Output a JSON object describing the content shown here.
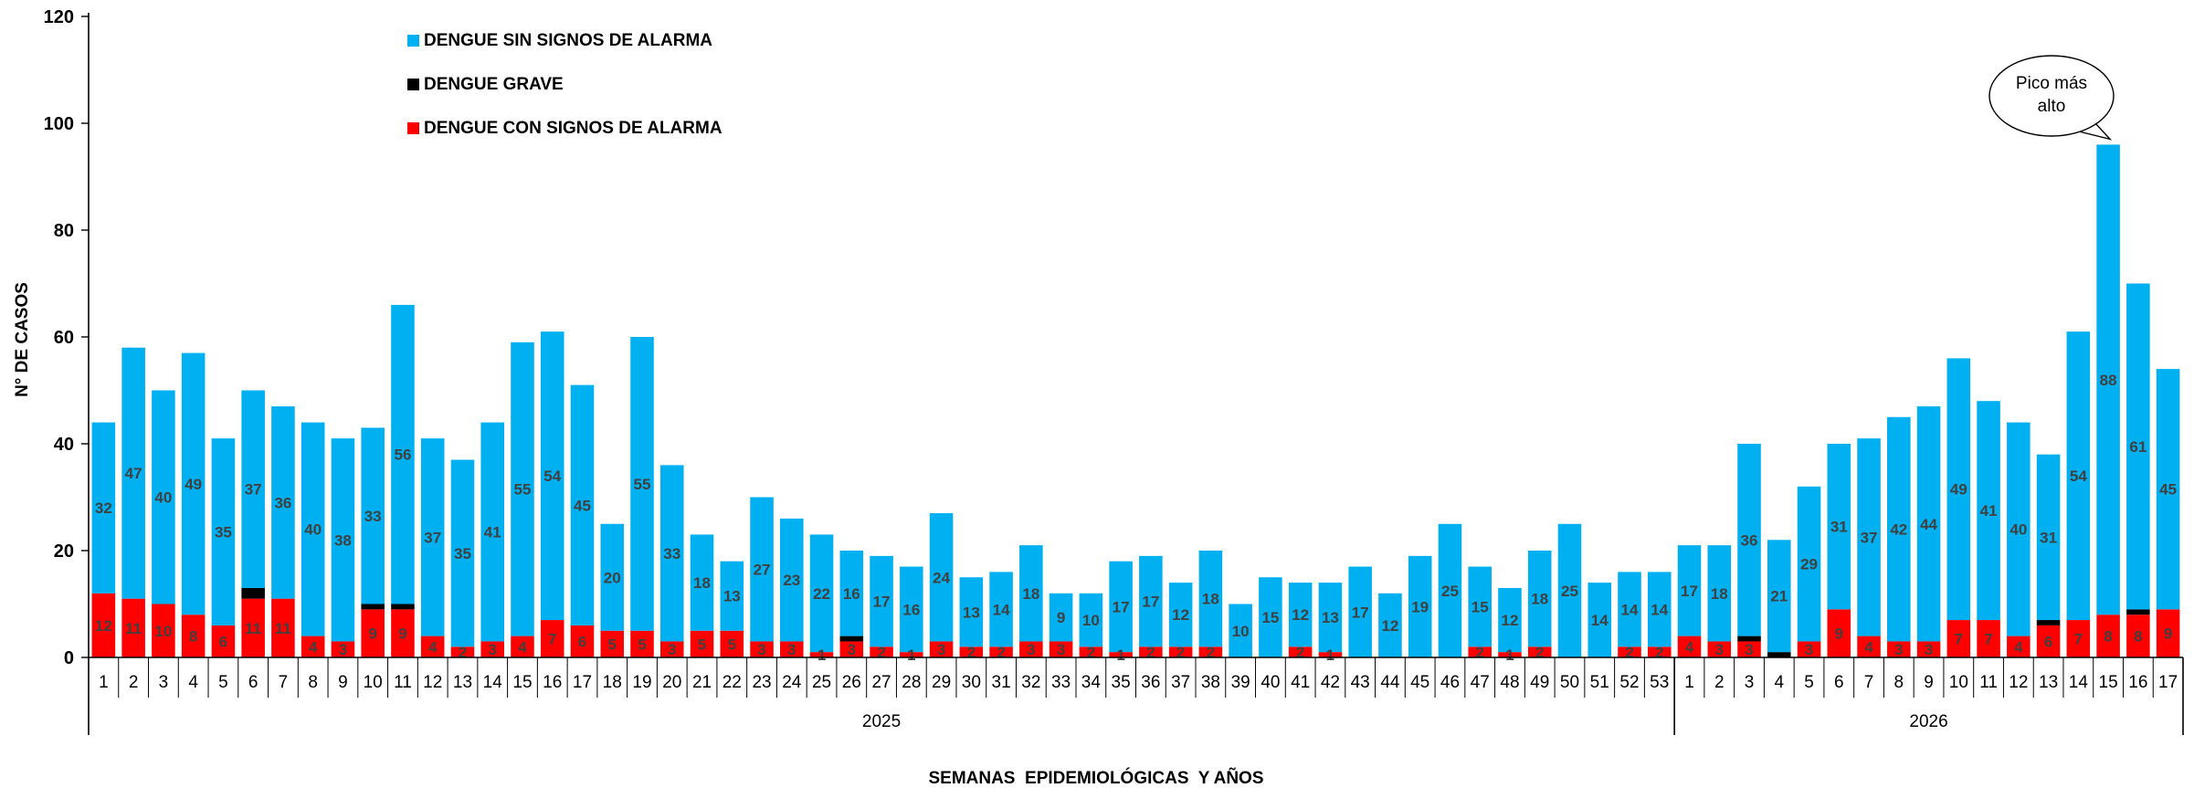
{
  "chart_data": {
    "type": "bar",
    "stacked": true,
    "ylabel": "N° DE CASOS",
    "xlabel": "SEMANAS  EPIDEMIOLÓGICAS  Y AÑOS",
    "ylim": [
      0,
      120
    ],
    "yticks": [
      0,
      20,
      40,
      60,
      80,
      100,
      120
    ],
    "grid": false,
    "legend_position": "top-left",
    "groups": [
      {
        "label": "2025",
        "weeks": [
          "1",
          "2",
          "3",
          "4",
          "5",
          "6",
          "7",
          "8",
          "9",
          "10",
          "11",
          "12",
          "13",
          "14",
          "15",
          "16",
          "17",
          "18",
          "19",
          "20",
          "21",
          "22",
          "23",
          "24",
          "25",
          "26",
          "27",
          "28",
          "29",
          "30",
          "31",
          "32",
          "33",
          "34",
          "35",
          "36",
          "37",
          "38",
          "39",
          "40",
          "41",
          "42",
          "43",
          "44",
          "45",
          "46",
          "47",
          "48",
          "49",
          "50",
          "51",
          "52",
          "53"
        ]
      },
      {
        "label": "2026",
        "weeks": [
          "1",
          "2",
          "3",
          "4",
          "5",
          "6",
          "7",
          "8",
          "9",
          "10",
          "11",
          "12",
          "13",
          "14",
          "15",
          "16",
          "17"
        ]
      }
    ],
    "series": [
      {
        "name": "DENGUE CON SIGNOS DE ALARMA",
        "color": "#ff0000",
        "values": [
          12,
          11,
          10,
          8,
          6,
          11,
          11,
          4,
          3,
          9,
          9,
          4,
          2,
          3,
          4,
          7,
          6,
          5,
          5,
          3,
          5,
          5,
          3,
          3,
          1,
          3,
          2,
          1,
          3,
          2,
          2,
          3,
          3,
          2,
          1,
          2,
          2,
          2,
          0,
          0,
          2,
          1,
          0,
          0,
          0,
          0,
          2,
          1,
          2,
          0,
          0,
          2,
          2,
          4,
          3,
          3,
          0,
          3,
          9,
          4,
          3,
          3,
          7,
          7,
          4,
          6,
          7,
          8,
          8,
          9
        ]
      },
      {
        "name": "DENGUE GRAVE",
        "color": "#000000",
        "values": [
          0,
          0,
          0,
          0,
          0,
          2,
          0,
          0,
          0,
          1,
          1,
          0,
          0,
          0,
          0,
          0,
          0,
          0,
          0,
          0,
          0,
          0,
          0,
          0,
          0,
          1,
          0,
          0,
          0,
          0,
          0,
          0,
          0,
          0,
          0,
          0,
          0,
          0,
          0,
          0,
          0,
          0,
          0,
          0,
          0,
          0,
          0,
          0,
          0,
          0,
          0,
          0,
          0,
          0,
          0,
          1,
          1,
          0,
          0,
          0,
          0,
          0,
          0,
          0,
          0,
          1,
          0,
          0,
          1,
          0
        ]
      },
      {
        "name": "DENGUE SIN SIGNOS DE ALARMA",
        "color": "#00b0f0",
        "values": [
          32,
          47,
          40,
          49,
          35,
          37,
          36,
          40,
          38,
          33,
          56,
          37,
          35,
          41,
          55,
          54,
          45,
          20,
          55,
          33,
          18,
          13,
          27,
          23,
          22,
          16,
          17,
          16,
          24,
          13,
          14,
          18,
          9,
          10,
          17,
          17,
          12,
          18,
          10,
          15,
          12,
          13,
          17,
          12,
          19,
          25,
          15,
          12,
          18,
          25,
          14,
          14,
          14,
          17,
          18,
          36,
          21,
          29,
          31,
          37,
          42,
          44,
          49,
          41,
          40,
          31,
          54,
          88,
          61,
          45
        ]
      }
    ],
    "legend_order": [
      "DENGUE SIN SIGNOS DE ALARMA",
      "DENGUE GRAVE",
      "DENGUE CON SIGNOS DE ALARMA"
    ],
    "annotation": {
      "text_lines": [
        "Pico más",
        "alto"
      ],
      "target": "2026 week 15"
    }
  }
}
